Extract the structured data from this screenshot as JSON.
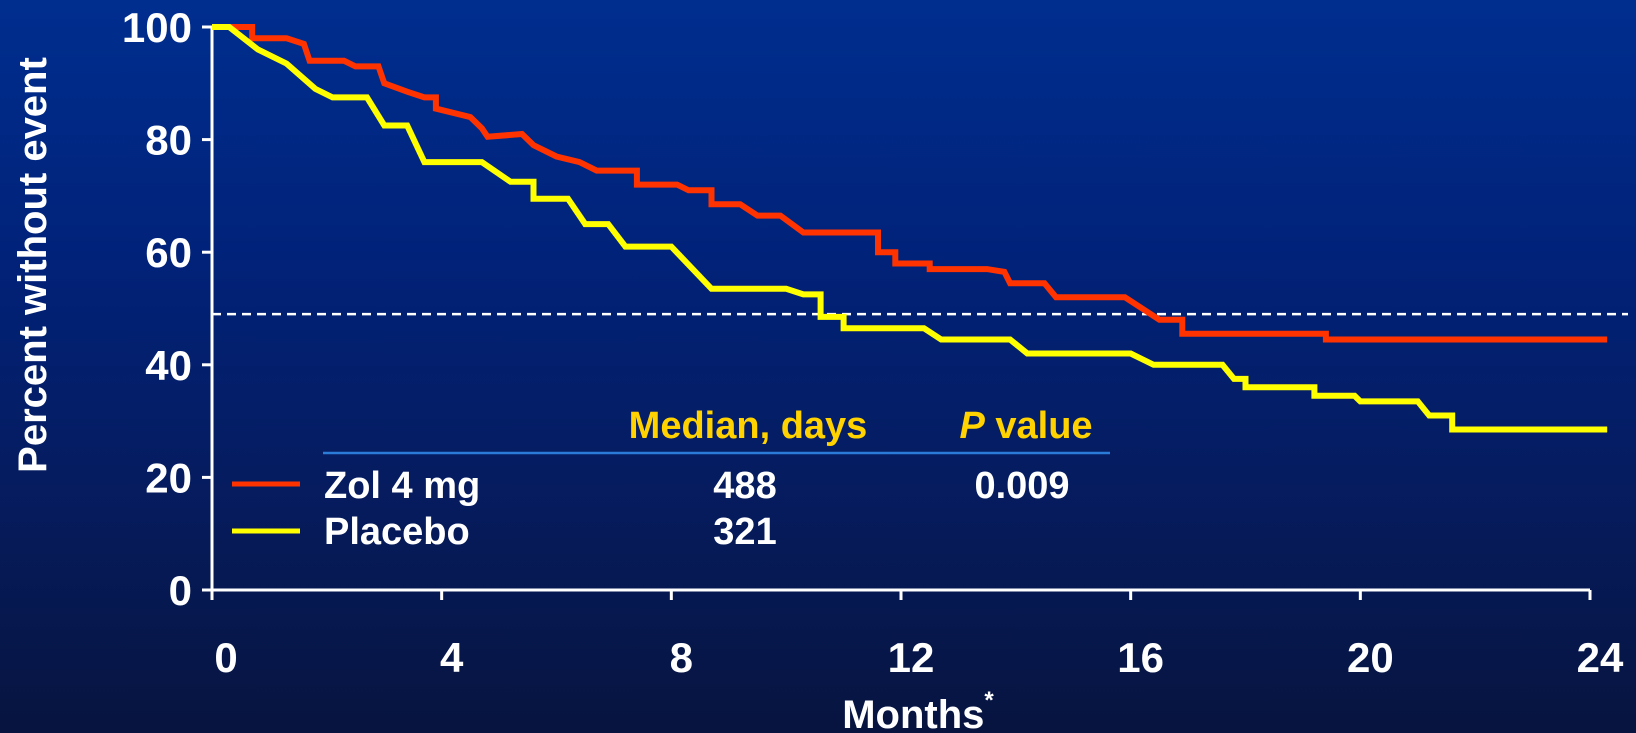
{
  "chart_data": {
    "type": "line",
    "step": true,
    "xlabel": "Months",
    "xlabel_superscript": "*",
    "ylabel": "Percent without event",
    "xlim": [
      0,
      24
    ],
    "ylim": [
      0,
      100
    ],
    "x_ticks": [
      "0",
      "4",
      "8",
      "12",
      "16",
      "20",
      "24"
    ],
    "y_ticks": [
      "0",
      "20",
      "40",
      "60",
      "80",
      "100"
    ],
    "median_reference_line": 49,
    "series": [
      {
        "name": "Zol 4 mg",
        "color": "#ff3300",
        "points": [
          [
            0,
            100
          ],
          [
            0.7,
            100
          ],
          [
            0.7,
            98
          ],
          [
            1.3,
            98
          ],
          [
            1.6,
            97
          ],
          [
            1.7,
            94
          ],
          [
            2.3,
            94
          ],
          [
            2.5,
            93
          ],
          [
            2.9,
            93
          ],
          [
            3.0,
            90
          ],
          [
            3.4,
            88.5
          ],
          [
            3.7,
            87.5
          ],
          [
            3.9,
            87.5
          ],
          [
            3.9,
            85.5
          ],
          [
            4.5,
            84
          ],
          [
            4.7,
            82
          ],
          [
            4.8,
            80.5
          ],
          [
            5.4,
            81
          ],
          [
            5.6,
            79
          ],
          [
            6.0,
            77
          ],
          [
            6.4,
            76
          ],
          [
            6.7,
            74.5
          ],
          [
            7.4,
            74.5
          ],
          [
            7.4,
            72
          ],
          [
            8.1,
            72
          ],
          [
            8.3,
            71
          ],
          [
            8.7,
            71
          ],
          [
            8.7,
            68.5
          ],
          [
            9.2,
            68.5
          ],
          [
            9.5,
            66.5
          ],
          [
            9.9,
            66.5
          ],
          [
            10.3,
            63.5
          ],
          [
            11.6,
            63.5
          ],
          [
            11.6,
            60
          ],
          [
            11.9,
            60
          ],
          [
            11.9,
            58
          ],
          [
            12.5,
            58
          ],
          [
            12.5,
            57
          ],
          [
            13.5,
            57
          ],
          [
            13.8,
            56.5
          ],
          [
            13.9,
            54.5
          ],
          [
            14.5,
            54.5
          ],
          [
            14.7,
            52
          ],
          [
            15.9,
            52
          ],
          [
            16.5,
            48
          ],
          [
            16.9,
            48
          ],
          [
            16.9,
            45.5
          ],
          [
            19.4,
            45.5
          ],
          [
            19.4,
            44.5
          ],
          [
            24.3,
            44.5
          ]
        ]
      },
      {
        "name": "Placebo",
        "color": "#ffff00",
        "points": [
          [
            0,
            100
          ],
          [
            0.3,
            100
          ],
          [
            0.8,
            96
          ],
          [
            1.3,
            93.5
          ],
          [
            1.8,
            89
          ],
          [
            2.1,
            87.5
          ],
          [
            2.7,
            87.5
          ],
          [
            3.0,
            82.5
          ],
          [
            3.4,
            82.5
          ],
          [
            3.7,
            76
          ],
          [
            4.7,
            76
          ],
          [
            5.2,
            72.5
          ],
          [
            5.6,
            72.5
          ],
          [
            5.6,
            69.5
          ],
          [
            6.2,
            69.5
          ],
          [
            6.5,
            65
          ],
          [
            6.9,
            65
          ],
          [
            7.2,
            61
          ],
          [
            8.0,
            61
          ],
          [
            8.7,
            53.5
          ],
          [
            10.0,
            53.5
          ],
          [
            10.3,
            52.5
          ],
          [
            10.6,
            52.5
          ],
          [
            10.6,
            48.5
          ],
          [
            11.0,
            48.5
          ],
          [
            11.0,
            46.5
          ],
          [
            12.4,
            46.5
          ],
          [
            12.7,
            44.5
          ],
          [
            13.9,
            44.5
          ],
          [
            14.2,
            42
          ],
          [
            16.0,
            42
          ],
          [
            16.4,
            40
          ],
          [
            17.0,
            40
          ],
          [
            17.2,
            40
          ],
          [
            17.6,
            40
          ],
          [
            17.8,
            37.5
          ],
          [
            18.0,
            37.5
          ],
          [
            18.0,
            36
          ],
          [
            19.2,
            36
          ],
          [
            19.2,
            34.5
          ],
          [
            19.9,
            34.5
          ],
          [
            20.0,
            33.5
          ],
          [
            21.0,
            33.5
          ],
          [
            21.2,
            31
          ],
          [
            21.6,
            31
          ],
          [
            21.6,
            28.5
          ],
          [
            24.3,
            28.5
          ]
        ]
      }
    ],
    "table": {
      "col_median": "Median, days",
      "col_p_italic": "P",
      "col_p_rest": " value",
      "rows": [
        {
          "name": "Zol 4 mg",
          "median": "488",
          "p": "0.009",
          "color": "#ff3300"
        },
        {
          "name": "Placebo",
          "median": "321",
          "p": "",
          "color": "#ffff00"
        }
      ]
    }
  },
  "colors": {
    "axis": "#ffffff",
    "reference_line": "#ffffff",
    "table_rule": "#2b7bd8"
  }
}
